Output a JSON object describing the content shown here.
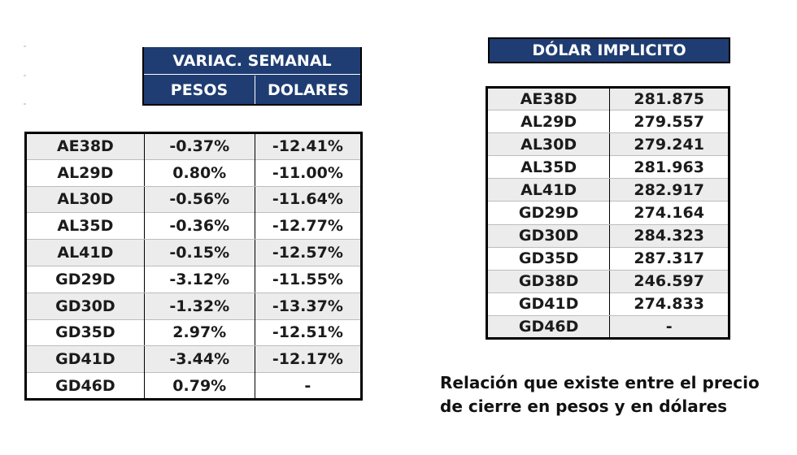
{
  "left_table": {
    "header": "VARIAC. SEMANAL",
    "col_pesos": "PESOS",
    "col_dolares": "DOLARES",
    "rows": [
      {
        "bond": "AE38D",
        "pesos": "-0.37%",
        "dolares": "-12.41%"
      },
      {
        "bond": "AL29D",
        "pesos": "0.80%",
        "dolares": "-11.00%"
      },
      {
        "bond": "AL30D",
        "pesos": "-0.56%",
        "dolares": "-11.64%"
      },
      {
        "bond": "AL35D",
        "pesos": "-0.36%",
        "dolares": "-12.77%"
      },
      {
        "bond": "AL41D",
        "pesos": "-0.15%",
        "dolares": "-12.57%"
      },
      {
        "bond": "GD29D",
        "pesos": "-3.12%",
        "dolares": "-11.55%"
      },
      {
        "bond": "GD30D",
        "pesos": "-1.32%",
        "dolares": "-13.37%"
      },
      {
        "bond": "GD35D",
        "pesos": "2.97%",
        "dolares": "-12.51%"
      },
      {
        "bond": "GD41D",
        "pesos": "-3.44%",
        "dolares": "-12.17%"
      },
      {
        "bond": "GD46D",
        "pesos": "0.79%",
        "dolares": "-"
      }
    ]
  },
  "right_table": {
    "header": "DÓLAR IMPLICITO",
    "rows": [
      {
        "bond": "AE38D",
        "value": "281.875"
      },
      {
        "bond": "AL29D",
        "value": "279.557"
      },
      {
        "bond": "AL30D",
        "value": "279.241"
      },
      {
        "bond": "AL35D",
        "value": "281.963"
      },
      {
        "bond": "AL41D",
        "value": "282.917"
      },
      {
        "bond": "GD29D",
        "value": "274.164"
      },
      {
        "bond": "GD30D",
        "value": "284.323"
      },
      {
        "bond": "GD35D",
        "value": "287.317"
      },
      {
        "bond": "GD38D",
        "value": "246.597"
      },
      {
        "bond": "GD41D",
        "value": "274.833"
      },
      {
        "bond": "GD46D",
        "value": "-"
      }
    ]
  },
  "note": {
    "line1": "Relación que existe entre el precio",
    "line2": "de cierre en pesos y en dólares"
  },
  "colors": {
    "header_bg": "#1f3d72",
    "header_text": "#ffffff",
    "row_shade": "#ececec"
  }
}
